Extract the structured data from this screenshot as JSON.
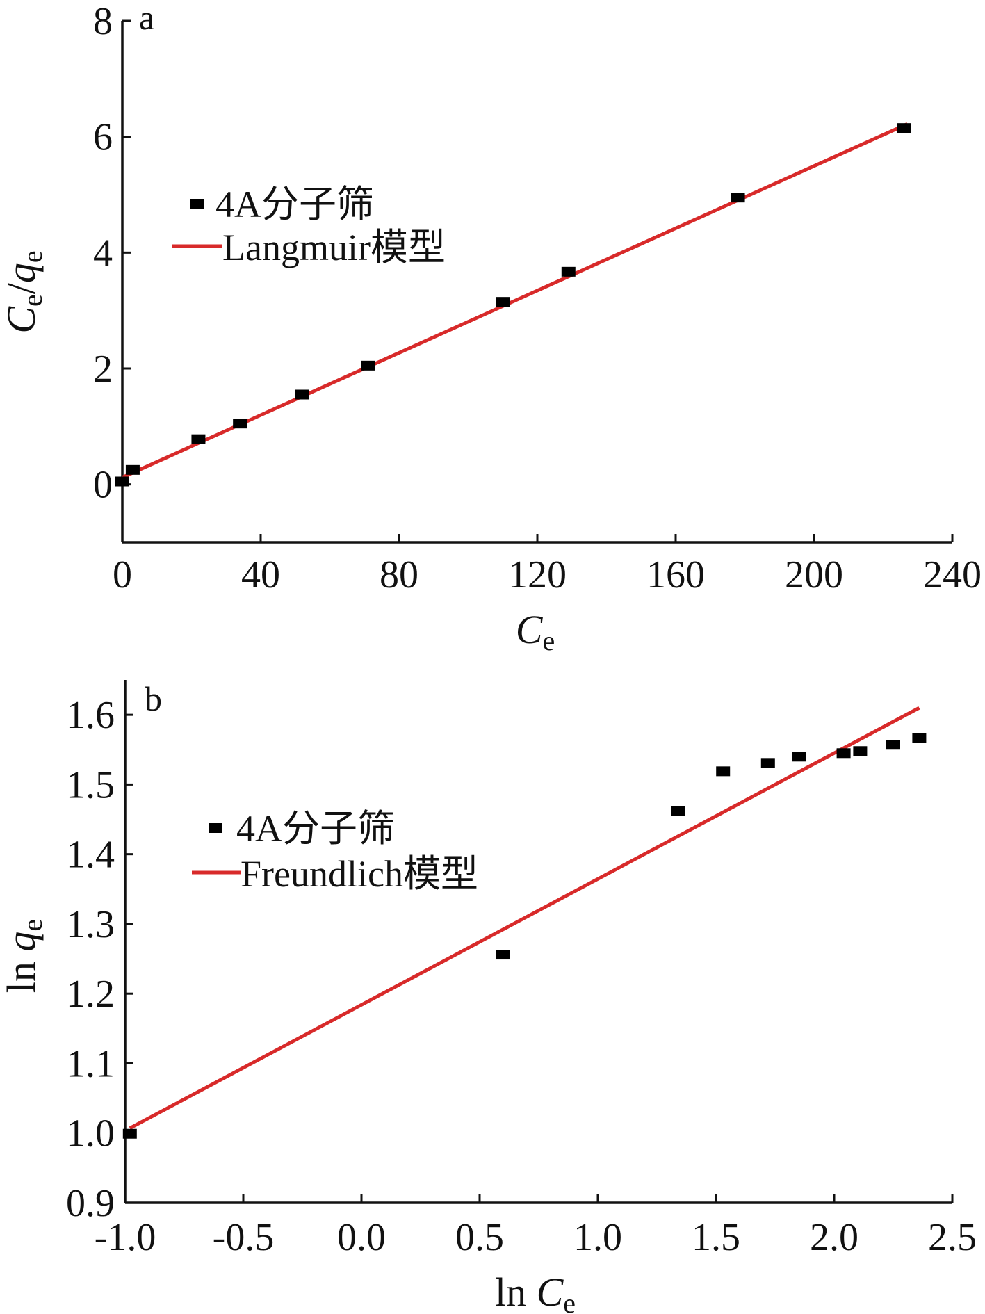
{
  "colors": {
    "axis": "#111111",
    "marker": "#000000",
    "fit_line": "#d82a2a",
    "background": "#ffffff"
  },
  "chart_data": [
    {
      "panel": "a",
      "type": "scatter",
      "xlabel": {
        "main": "C",
        "sub": "e"
      },
      "ylabel": {
        "main1": "C",
        "sub1": "e",
        "slash": "/",
        "main2": "q",
        "sub2": "e"
      },
      "xlim": [
        0,
        240
      ],
      "ylim": [
        -1,
        8
      ],
      "xticks": [
        0,
        40,
        80,
        120,
        160,
        200,
        240
      ],
      "xtick_labels": [
        "0",
        "40",
        "80",
        "120",
        "160",
        "200",
        "240"
      ],
      "yticks": [
        0,
        2,
        4,
        6,
        8
      ],
      "ytick_labels": [
        "0",
        "2",
        "4",
        "6",
        "8"
      ],
      "grid": false,
      "legend_position": "upper-left",
      "series": [
        {
          "name": "4A分子筛",
          "kind": "points",
          "x": [
            0,
            3,
            22,
            34,
            52,
            71,
            110,
            129,
            178,
            226
          ],
          "y": [
            0.05,
            0.25,
            0.78,
            1.05,
            1.55,
            2.05,
            3.15,
            3.67,
            4.95,
            6.15
          ]
        },
        {
          "name": "Langmuir模型",
          "kind": "line",
          "x": [
            0,
            227
          ],
          "y": [
            0.12,
            6.22
          ]
        }
      ]
    },
    {
      "panel": "b",
      "type": "scatter",
      "xlabel": {
        "prefix": "ln ",
        "main": "C",
        "sub": "e"
      },
      "ylabel": {
        "prefix": "ln ",
        "main": "q",
        "sub": "e"
      },
      "xlim": [
        -1.0,
        2.5
      ],
      "ylim": [
        0.9,
        1.65
      ],
      "xticks": [
        -1.0,
        -0.5,
        0.0,
        0.5,
        1.0,
        1.5,
        2.0,
        2.5
      ],
      "xtick_labels": [
        "-1.0",
        "-0.5",
        "0.0",
        "0.5",
        "1.0",
        "1.5",
        "2.0",
        "2.5"
      ],
      "yticks": [
        0.9,
        1.0,
        1.1,
        1.2,
        1.3,
        1.4,
        1.5,
        1.6
      ],
      "ytick_labels": [
        "0.9",
        "1.0",
        "1.1",
        "1.2",
        "1.3",
        "1.4",
        "1.5",
        "1.6"
      ],
      "grid": false,
      "legend_position": "upper-left",
      "series": [
        {
          "name": "4A分子筛",
          "kind": "points",
          "x": [
            -0.98,
            0.6,
            1.34,
            1.53,
            1.72,
            1.85,
            2.04,
            2.11,
            2.25,
            2.36
          ],
          "y": [
            0.999,
            1.256,
            1.462,
            1.519,
            1.531,
            1.54,
            1.545,
            1.548,
            1.557,
            1.567
          ]
        },
        {
          "name": "Freundlich模型",
          "kind": "line",
          "x": [
            -0.98,
            2.36
          ],
          "y": [
            1.007,
            1.61
          ]
        }
      ]
    }
  ]
}
